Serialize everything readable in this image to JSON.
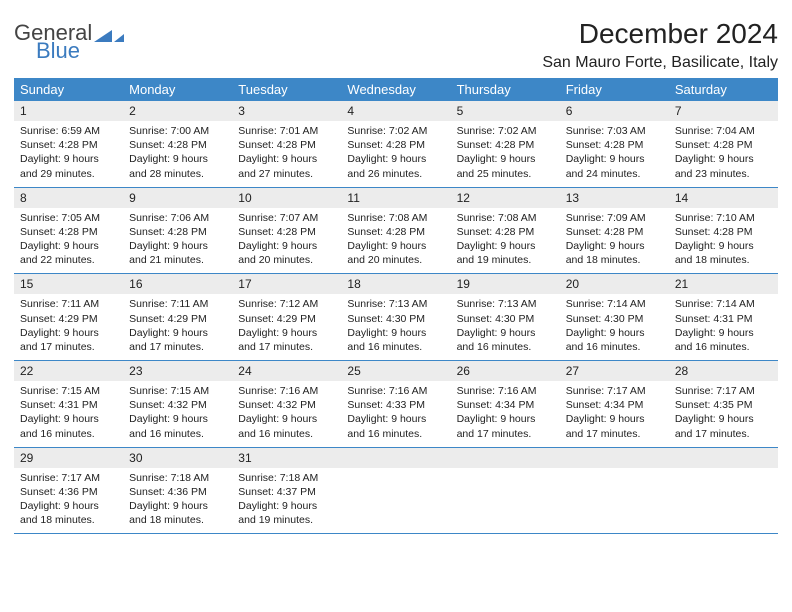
{
  "logo": {
    "word1": "General",
    "word2": "Blue",
    "accent_color": "#3b7bbf"
  },
  "title": "December 2024",
  "location": "San Mauro Forte, Basilicate, Italy",
  "calendar": {
    "header_bg": "#3d87c7",
    "header_fg": "#ffffff",
    "daynum_bg": "#ececec",
    "border_color": "#3d87c7",
    "text_color": "#222222",
    "font_size_body": 10.5,
    "font_size_header": 13,
    "dow": [
      "Sunday",
      "Monday",
      "Tuesday",
      "Wednesday",
      "Thursday",
      "Friday",
      "Saturday"
    ],
    "weeks": [
      [
        {
          "n": "1",
          "sunrise": "6:59 AM",
          "sunset": "4:28 PM",
          "daylight": "9 hours and 29 minutes."
        },
        {
          "n": "2",
          "sunrise": "7:00 AM",
          "sunset": "4:28 PM",
          "daylight": "9 hours and 28 minutes."
        },
        {
          "n": "3",
          "sunrise": "7:01 AM",
          "sunset": "4:28 PM",
          "daylight": "9 hours and 27 minutes."
        },
        {
          "n": "4",
          "sunrise": "7:02 AM",
          "sunset": "4:28 PM",
          "daylight": "9 hours and 26 minutes."
        },
        {
          "n": "5",
          "sunrise": "7:02 AM",
          "sunset": "4:28 PM",
          "daylight": "9 hours and 25 minutes."
        },
        {
          "n": "6",
          "sunrise": "7:03 AM",
          "sunset": "4:28 PM",
          "daylight": "9 hours and 24 minutes."
        },
        {
          "n": "7",
          "sunrise": "7:04 AM",
          "sunset": "4:28 PM",
          "daylight": "9 hours and 23 minutes."
        }
      ],
      [
        {
          "n": "8",
          "sunrise": "7:05 AM",
          "sunset": "4:28 PM",
          "daylight": "9 hours and 22 minutes."
        },
        {
          "n": "9",
          "sunrise": "7:06 AM",
          "sunset": "4:28 PM",
          "daylight": "9 hours and 21 minutes."
        },
        {
          "n": "10",
          "sunrise": "7:07 AM",
          "sunset": "4:28 PM",
          "daylight": "9 hours and 20 minutes."
        },
        {
          "n": "11",
          "sunrise": "7:08 AM",
          "sunset": "4:28 PM",
          "daylight": "9 hours and 20 minutes."
        },
        {
          "n": "12",
          "sunrise": "7:08 AM",
          "sunset": "4:28 PM",
          "daylight": "9 hours and 19 minutes."
        },
        {
          "n": "13",
          "sunrise": "7:09 AM",
          "sunset": "4:28 PM",
          "daylight": "9 hours and 18 minutes."
        },
        {
          "n": "14",
          "sunrise": "7:10 AM",
          "sunset": "4:28 PM",
          "daylight": "9 hours and 18 minutes."
        }
      ],
      [
        {
          "n": "15",
          "sunrise": "7:11 AM",
          "sunset": "4:29 PM",
          "daylight": "9 hours and 17 minutes."
        },
        {
          "n": "16",
          "sunrise": "7:11 AM",
          "sunset": "4:29 PM",
          "daylight": "9 hours and 17 minutes."
        },
        {
          "n": "17",
          "sunrise": "7:12 AM",
          "sunset": "4:29 PM",
          "daylight": "9 hours and 17 minutes."
        },
        {
          "n": "18",
          "sunrise": "7:13 AM",
          "sunset": "4:30 PM",
          "daylight": "9 hours and 16 minutes."
        },
        {
          "n": "19",
          "sunrise": "7:13 AM",
          "sunset": "4:30 PM",
          "daylight": "9 hours and 16 minutes."
        },
        {
          "n": "20",
          "sunrise": "7:14 AM",
          "sunset": "4:30 PM",
          "daylight": "9 hours and 16 minutes."
        },
        {
          "n": "21",
          "sunrise": "7:14 AM",
          "sunset": "4:31 PM",
          "daylight": "9 hours and 16 minutes."
        }
      ],
      [
        {
          "n": "22",
          "sunrise": "7:15 AM",
          "sunset": "4:31 PM",
          "daylight": "9 hours and 16 minutes."
        },
        {
          "n": "23",
          "sunrise": "7:15 AM",
          "sunset": "4:32 PM",
          "daylight": "9 hours and 16 minutes."
        },
        {
          "n": "24",
          "sunrise": "7:16 AM",
          "sunset": "4:32 PM",
          "daylight": "9 hours and 16 minutes."
        },
        {
          "n": "25",
          "sunrise": "7:16 AM",
          "sunset": "4:33 PM",
          "daylight": "9 hours and 16 minutes."
        },
        {
          "n": "26",
          "sunrise": "7:16 AM",
          "sunset": "4:34 PM",
          "daylight": "9 hours and 17 minutes."
        },
        {
          "n": "27",
          "sunrise": "7:17 AM",
          "sunset": "4:34 PM",
          "daylight": "9 hours and 17 minutes."
        },
        {
          "n": "28",
          "sunrise": "7:17 AM",
          "sunset": "4:35 PM",
          "daylight": "9 hours and 17 minutes."
        }
      ],
      [
        {
          "n": "29",
          "sunrise": "7:17 AM",
          "sunset": "4:36 PM",
          "daylight": "9 hours and 18 minutes."
        },
        {
          "n": "30",
          "sunrise": "7:18 AM",
          "sunset": "4:36 PM",
          "daylight": "9 hours and 18 minutes."
        },
        {
          "n": "31",
          "sunrise": "7:18 AM",
          "sunset": "4:37 PM",
          "daylight": "9 hours and 19 minutes."
        },
        null,
        null,
        null,
        null
      ]
    ]
  }
}
